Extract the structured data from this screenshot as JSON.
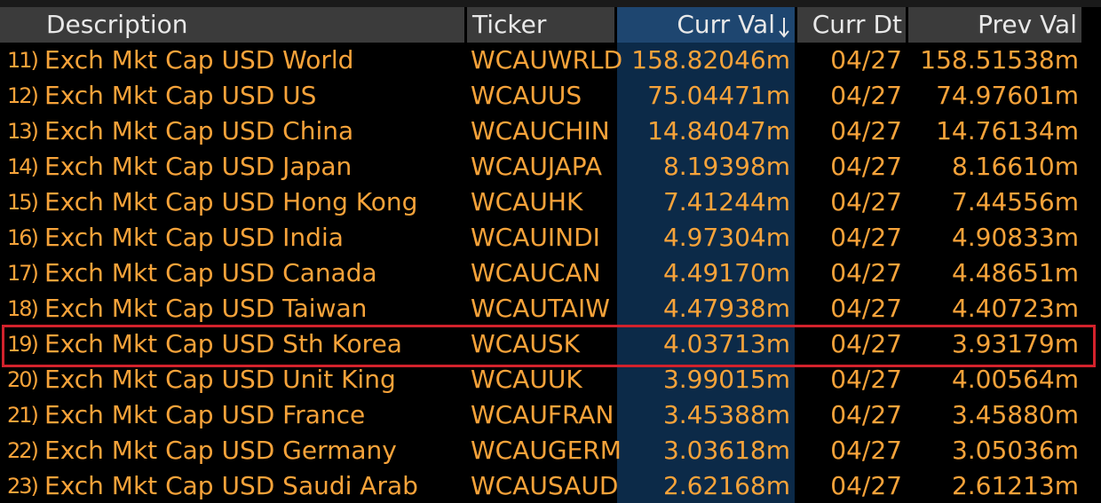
{
  "table": {
    "columns": [
      "Description",
      "Ticker",
      "Curr Val",
      "Curr Dt",
      "Prev Val"
    ],
    "rows": [
      [
        "11)",
        "Exch Mkt Cap USD World",
        "WCAUWRLD",
        "158.82046m",
        "04/27",
        "158.51538m"
      ],
      [
        "12)",
        "Exch Mkt Cap USD US",
        "WCAUUS",
        "75.04471m",
        "04/27",
        "74.97601m"
      ],
      [
        "13)",
        "Exch Mkt Cap USD China",
        "WCAUCHIN",
        "14.84047m",
        "04/27",
        "14.76134m"
      ],
      [
        "14)",
        "Exch Mkt Cap USD Japan",
        "WCAUJAPA",
        "8.19398m",
        "04/27",
        "8.16610m"
      ],
      [
        "15)",
        "Exch Mkt Cap USD Hong Kong",
        "WCAUHK",
        "7.41244m",
        "04/27",
        "7.44556m"
      ],
      [
        "16)",
        "Exch Mkt Cap USD India",
        "WCAUINDI",
        "4.97304m",
        "04/27",
        "4.90833m"
      ],
      [
        "17)",
        "Exch Mkt Cap USD Canada",
        "WCAUCAN",
        "4.49170m",
        "04/27",
        "4.48651m"
      ],
      [
        "18)",
        "Exch Mkt Cap USD Taiwan",
        "WCAUTAIW",
        "4.47938m",
        "04/27",
        "4.40723m"
      ],
      [
        "19)",
        "Exch Mkt Cap USD Sth Korea",
        "WCAUSK",
        "4.03713m",
        "04/27",
        "3.93179m"
      ],
      [
        "20)",
        "Exch Mkt Cap USD Unit King",
        "WCAUUK",
        "3.99015m",
        "04/27",
        "4.00564m"
      ],
      [
        "21)",
        "Exch Mkt Cap USD France",
        "WCAUFRAN",
        "3.45388m",
        "04/27",
        "3.45880m"
      ],
      [
        "22)",
        "Exch Mkt Cap USD Germany",
        "WCAUGERM",
        "3.03618m",
        "04/27",
        "3.05036m"
      ],
      [
        "23)",
        "Exch Mkt Cap USD Saudi Arab",
        "WCAUSAUD",
        "2.62168m",
        "04/27",
        "2.61213m"
      ]
    ]
  }
}
